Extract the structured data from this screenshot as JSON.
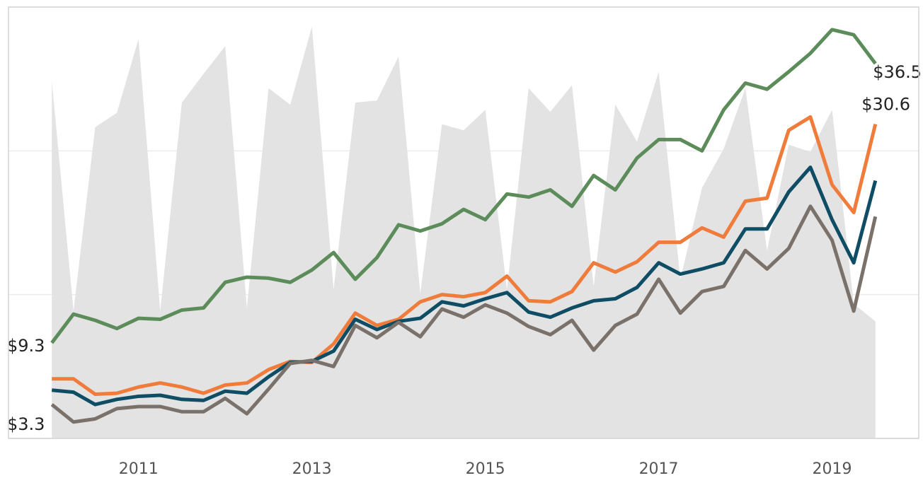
{
  "chart_data": {
    "type": "line",
    "x": [
      2010,
      2010.25,
      2010.5,
      2010.75,
      2011,
      2011.25,
      2011.5,
      2011.75,
      2012,
      2012.25,
      2012.5,
      2012.75,
      2013,
      2013.25,
      2013.5,
      2013.75,
      2014,
      2014.25,
      2014.5,
      2014.75,
      2015,
      2015.25,
      2015.5,
      2015.75,
      2016,
      2016.25,
      2016.5,
      2016.75,
      2017,
      2017.25,
      2017.5,
      2017.75,
      2018,
      2018.25,
      2018.5,
      2018.75,
      2019,
      2019.25,
      2019.5
    ],
    "xlim": [
      2009.5,
      2020
    ],
    "xticks": [
      2011,
      2013,
      2015,
      2017,
      2019
    ],
    "ylim": [
      0,
      42
    ],
    "yticks": [
      0,
      14,
      28,
      42
    ],
    "grid": true,
    "series": [
      {
        "type": "area",
        "color": "#e4e3e3",
        "values": [
          34.8,
          12.4,
          30.3,
          31.7,
          38.9,
          12.4,
          32.7,
          35.5,
          38.2,
          12.7,
          34.1,
          32.5,
          40.1,
          14.5,
          32.7,
          32.9,
          37.2,
          14.1,
          30.6,
          30.0,
          32.0,
          14.5,
          34.1,
          31.8,
          34.4,
          14.8,
          32.5,
          28.9,
          35.7,
          15.5,
          24.4,
          28.2,
          34.1,
          18.3,
          28.6,
          27.9,
          32.0,
          13.1,
          11.4
        ]
      },
      {
        "color": "#5b8c5a",
        "values": [
          9.3,
          12.1,
          11.5,
          10.7,
          11.7,
          11.6,
          12.5,
          12.7,
          15.2,
          15.7,
          15.6,
          15.2,
          16.4,
          18.1,
          15.5,
          17.6,
          20.8,
          20.2,
          20.9,
          22.3,
          21.3,
          23.8,
          23.5,
          24.2,
          22.6,
          25.6,
          24.2,
          27.3,
          29.1,
          29.1,
          28.0,
          32.0,
          34.6,
          34.0,
          35.7,
          37.5,
          39.8,
          39.3,
          36.5
        ],
        "value_labels": [
          "$9.3",
          null,
          null,
          null,
          null,
          null,
          null,
          null,
          null,
          null,
          null,
          null,
          null,
          null,
          null,
          null,
          null,
          null,
          null,
          null,
          null,
          null,
          null,
          null,
          null,
          null,
          null,
          null,
          null,
          null,
          null,
          null,
          null,
          null,
          null,
          null,
          null,
          null,
          "$36.5"
        ]
      },
      {
        "color": "#f07c3c",
        "values": [
          5.8,
          5.8,
          4.3,
          4.4,
          5.0,
          5.4,
          5.0,
          4.4,
          5.2,
          5.4,
          6.7,
          7.5,
          7.4,
          9.2,
          12.2,
          11.0,
          11.6,
          13.3,
          14.0,
          13.8,
          14.2,
          15.8,
          13.4,
          13.3,
          14.3,
          17.1,
          16.2,
          17.2,
          19.1,
          19.1,
          20.5,
          19.6,
          23.1,
          23.4,
          30.0,
          31.3,
          24.7,
          22.0,
          30.6
        ],
        "value_labels": [
          null,
          null,
          null,
          null,
          null,
          null,
          null,
          null,
          null,
          null,
          null,
          null,
          null,
          null,
          null,
          null,
          null,
          null,
          null,
          null,
          null,
          null,
          null,
          null,
          null,
          null,
          null,
          null,
          null,
          null,
          null,
          null,
          null,
          null,
          null,
          null,
          null,
          null,
          "$30.6"
        ]
      },
      {
        "color": "#0e4d64",
        "values": [
          4.7,
          4.5,
          3.3,
          3.8,
          4.1,
          4.2,
          3.8,
          3.7,
          4.6,
          4.4,
          6.0,
          7.4,
          7.5,
          8.5,
          11.6,
          10.6,
          11.4,
          11.7,
          13.3,
          12.9,
          13.6,
          14.2,
          12.3,
          11.8,
          12.7,
          13.4,
          13.6,
          14.7,
          17.1,
          16.0,
          16.5,
          17.1,
          20.4,
          20.4,
          24.0,
          26.4,
          21.3,
          17.1,
          25.1
        ]
      },
      {
        "color": "#7a716a",
        "values": [
          3.3,
          1.6,
          1.9,
          2.9,
          3.1,
          3.1,
          2.6,
          2.6,
          3.9,
          2.4,
          4.8,
          7.3,
          7.6,
          7.0,
          11.0,
          9.8,
          11.3,
          9.9,
          12.6,
          11.8,
          13.0,
          12.2,
          10.9,
          10.1,
          11.5,
          8.6,
          11.0,
          12.1,
          15.5,
          12.2,
          14.3,
          14.8,
          18.3,
          16.5,
          18.5,
          22.6,
          19.3,
          12.4,
          21.6
        ],
        "value_labels": [
          "$3.3",
          null,
          null,
          null,
          null,
          null,
          null,
          null,
          null,
          null,
          null,
          null,
          null,
          null,
          null,
          null,
          null,
          null,
          null,
          null,
          null,
          null,
          null,
          null,
          null,
          null,
          null,
          null,
          null,
          null,
          null,
          null,
          null,
          null,
          null,
          null,
          null,
          null,
          null
        ]
      }
    ]
  }
}
